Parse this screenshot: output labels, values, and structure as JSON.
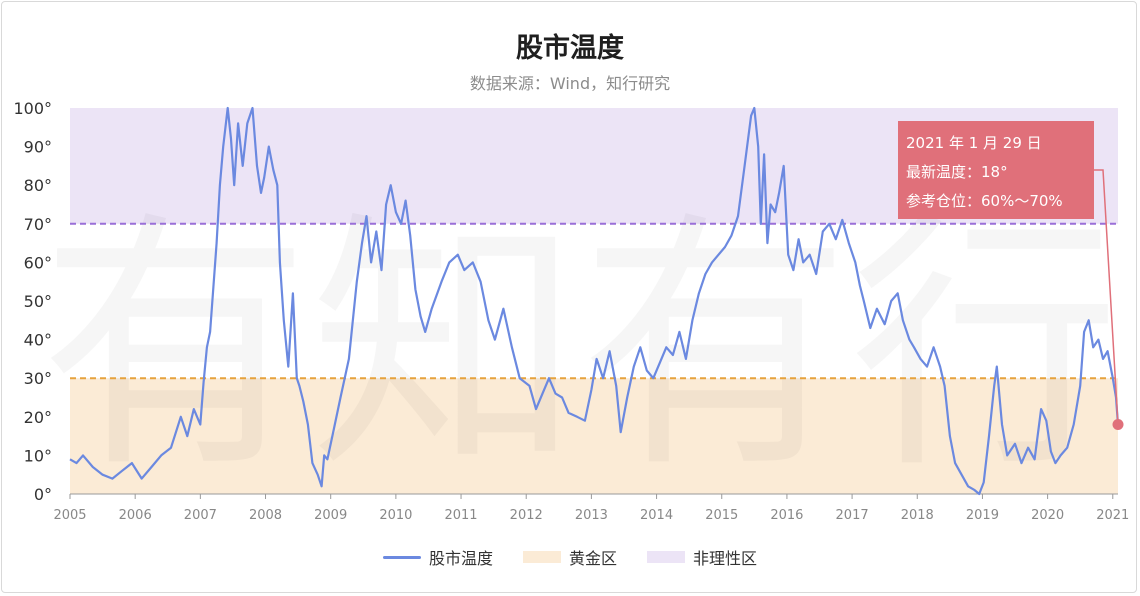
{
  "title": "股市温度",
  "subtitle": "数据来源：Wind，知行研究",
  "callout": {
    "date": "2021 年 1 月 29 日",
    "temp": "最新温度：18°",
    "position": "参考仓位：60%～70%"
  },
  "legend": [
    {
      "label": "股市温度",
      "kind": "line",
      "color": "#6b89e0"
    },
    {
      "label": "黄金区",
      "kind": "box",
      "color": "#fbebd6"
    },
    {
      "label": "非理性区",
      "kind": "box",
      "color": "#ece4f6"
    }
  ],
  "watermark": "有知有行",
  "chart_data": {
    "type": "line",
    "title": "股市温度",
    "xlabel": "",
    "ylabel": "",
    "xlim": [
      2005,
      2021.08
    ],
    "ylim": [
      0,
      100
    ],
    "y_ticks": [
      "0°",
      "10°",
      "20°",
      "30°",
      "40°",
      "50°",
      "60°",
      "70°",
      "80°",
      "90°",
      "100°"
    ],
    "x_ticks": [
      "2005",
      "2006",
      "2007",
      "2008",
      "2009",
      "2010",
      "2011",
      "2012",
      "2013",
      "2014",
      "2015",
      "2016",
      "2017",
      "2018",
      "2019",
      "2020",
      "2021"
    ],
    "bands": [
      {
        "name": "黄金区",
        "from": 0,
        "to": 30,
        "color": "#fbebd6"
      },
      {
        "name": "非理性区",
        "from": 70,
        "to": 100,
        "color": "#ece4f6"
      }
    ],
    "thresholds": [
      {
        "value": 70,
        "color": "#9a6fd8"
      },
      {
        "value": 30,
        "color": "#e6a23c"
      }
    ],
    "series": [
      {
        "name": "股市温度",
        "color": "#6b89e0",
        "points": [
          [
            2005.0,
            9
          ],
          [
            2005.1,
            8
          ],
          [
            2005.2,
            10
          ],
          [
            2005.35,
            7
          ],
          [
            2005.5,
            5
          ],
          [
            2005.65,
            4
          ],
          [
            2005.8,
            6
          ],
          [
            2005.95,
            8
          ],
          [
            2006.1,
            4
          ],
          [
            2006.25,
            7
          ],
          [
            2006.4,
            10
          ],
          [
            2006.55,
            12
          ],
          [
            2006.7,
            20
          ],
          [
            2006.8,
            15
          ],
          [
            2006.9,
            22
          ],
          [
            2007.0,
            18
          ],
          [
            2007.05,
            29
          ],
          [
            2007.1,
            38
          ],
          [
            2007.15,
            42
          ],
          [
            2007.25,
            65
          ],
          [
            2007.3,
            80
          ],
          [
            2007.35,
            90
          ],
          [
            2007.42,
            100
          ],
          [
            2007.47,
            92
          ],
          [
            2007.52,
            80
          ],
          [
            2007.58,
            96
          ],
          [
            2007.65,
            85
          ],
          [
            2007.72,
            96
          ],
          [
            2007.8,
            100
          ],
          [
            2007.87,
            85
          ],
          [
            2007.93,
            78
          ],
          [
            2007.98,
            82
          ],
          [
            2008.05,
            90
          ],
          [
            2008.12,
            84
          ],
          [
            2008.18,
            80
          ],
          [
            2008.22,
            60
          ],
          [
            2008.28,
            45
          ],
          [
            2008.35,
            33
          ],
          [
            2008.42,
            52
          ],
          [
            2008.48,
            30
          ],
          [
            2008.52,
            28
          ],
          [
            2008.58,
            24
          ],
          [
            2008.65,
            18
          ],
          [
            2008.72,
            8
          ],
          [
            2008.8,
            5
          ],
          [
            2008.86,
            2
          ],
          [
            2008.9,
            10
          ],
          [
            2008.95,
            9
          ],
          [
            2009.05,
            17
          ],
          [
            2009.15,
            25
          ],
          [
            2009.28,
            35
          ],
          [
            2009.4,
            55
          ],
          [
            2009.48,
            65
          ],
          [
            2009.55,
            72
          ],
          [
            2009.62,
            60
          ],
          [
            2009.7,
            68
          ],
          [
            2009.78,
            58
          ],
          [
            2009.85,
            75
          ],
          [
            2009.92,
            80
          ],
          [
            2010.0,
            73
          ],
          [
            2010.08,
            70
          ],
          [
            2010.15,
            76
          ],
          [
            2010.22,
            67
          ],
          [
            2010.3,
            53
          ],
          [
            2010.38,
            46
          ],
          [
            2010.45,
            42
          ],
          [
            2010.55,
            48
          ],
          [
            2010.7,
            55
          ],
          [
            2010.82,
            60
          ],
          [
            2010.95,
            62
          ],
          [
            2011.05,
            58
          ],
          [
            2011.18,
            60
          ],
          [
            2011.3,
            55
          ],
          [
            2011.42,
            45
          ],
          [
            2011.52,
            40
          ],
          [
            2011.65,
            48
          ],
          [
            2011.78,
            38
          ],
          [
            2011.9,
            30
          ],
          [
            2012.05,
            28
          ],
          [
            2012.15,
            22
          ],
          [
            2012.25,
            26
          ],
          [
            2012.35,
            30
          ],
          [
            2012.45,
            26
          ],
          [
            2012.55,
            25
          ],
          [
            2012.65,
            21
          ],
          [
            2012.78,
            20
          ],
          [
            2012.9,
            19
          ],
          [
            2013.0,
            27
          ],
          [
            2013.08,
            35
          ],
          [
            2013.18,
            30
          ],
          [
            2013.28,
            37
          ],
          [
            2013.38,
            28
          ],
          [
            2013.45,
            16
          ],
          [
            2013.55,
            25
          ],
          [
            2013.65,
            33
          ],
          [
            2013.75,
            38
          ],
          [
            2013.85,
            32
          ],
          [
            2013.95,
            30
          ],
          [
            2014.05,
            34
          ],
          [
            2014.15,
            38
          ],
          [
            2014.25,
            36
          ],
          [
            2014.35,
            42
          ],
          [
            2014.45,
            35
          ],
          [
            2014.55,
            45
          ],
          [
            2014.65,
            52
          ],
          [
            2014.75,
            57
          ],
          [
            2014.85,
            60
          ],
          [
            2014.95,
            62
          ],
          [
            2015.05,
            64
          ],
          [
            2015.15,
            67
          ],
          [
            2015.25,
            72
          ],
          [
            2015.35,
            85
          ],
          [
            2015.45,
            98
          ],
          [
            2015.5,
            100
          ],
          [
            2015.56,
            90
          ],
          [
            2015.6,
            70
          ],
          [
            2015.65,
            88
          ],
          [
            2015.7,
            65
          ],
          [
            2015.75,
            75
          ],
          [
            2015.82,
            73
          ],
          [
            2015.88,
            78
          ],
          [
            2015.95,
            85
          ],
          [
            2016.02,
            62
          ],
          [
            2016.1,
            58
          ],
          [
            2016.18,
            66
          ],
          [
            2016.25,
            60
          ],
          [
            2016.35,
            62
          ],
          [
            2016.45,
            57
          ],
          [
            2016.55,
            68
          ],
          [
            2016.65,
            70
          ],
          [
            2016.75,
            66
          ],
          [
            2016.85,
            71
          ],
          [
            2016.95,
            65
          ],
          [
            2017.05,
            60
          ],
          [
            2017.12,
            54
          ],
          [
            2017.18,
            50
          ],
          [
            2017.28,
            43
          ],
          [
            2017.38,
            48
          ],
          [
            2017.5,
            44
          ],
          [
            2017.6,
            50
          ],
          [
            2017.7,
            52
          ],
          [
            2017.78,
            45
          ],
          [
            2017.88,
            40
          ],
          [
            2017.95,
            38
          ],
          [
            2018.05,
            35
          ],
          [
            2018.15,
            33
          ],
          [
            2018.25,
            38
          ],
          [
            2018.35,
            33
          ],
          [
            2018.42,
            28
          ],
          [
            2018.5,
            15
          ],
          [
            2018.58,
            8
          ],
          [
            2018.68,
            5
          ],
          [
            2018.78,
            2
          ],
          [
            2018.88,
            1
          ],
          [
            2018.95,
            0
          ],
          [
            2019.02,
            3
          ],
          [
            2019.1,
            15
          ],
          [
            2019.18,
            28
          ],
          [
            2019.22,
            33
          ],
          [
            2019.3,
            18
          ],
          [
            2019.38,
            10
          ],
          [
            2019.5,
            13
          ],
          [
            2019.6,
            8
          ],
          [
            2019.7,
            12
          ],
          [
            2019.8,
            9
          ],
          [
            2019.9,
            22
          ],
          [
            2019.98,
            19
          ],
          [
            2020.05,
            11
          ],
          [
            2020.12,
            8
          ],
          [
            2020.2,
            10
          ],
          [
            2020.3,
            12
          ],
          [
            2020.4,
            18
          ],
          [
            2020.5,
            28
          ],
          [
            2020.56,
            42
          ],
          [
            2020.63,
            45
          ],
          [
            2020.7,
            38
          ],
          [
            2020.78,
            40
          ],
          [
            2020.85,
            35
          ],
          [
            2020.92,
            37
          ],
          [
            2021.0,
            30
          ],
          [
            2021.05,
            25
          ],
          [
            2021.08,
            18
          ]
        ]
      }
    ],
    "last_point": [
      2021.08,
      18
    ]
  }
}
